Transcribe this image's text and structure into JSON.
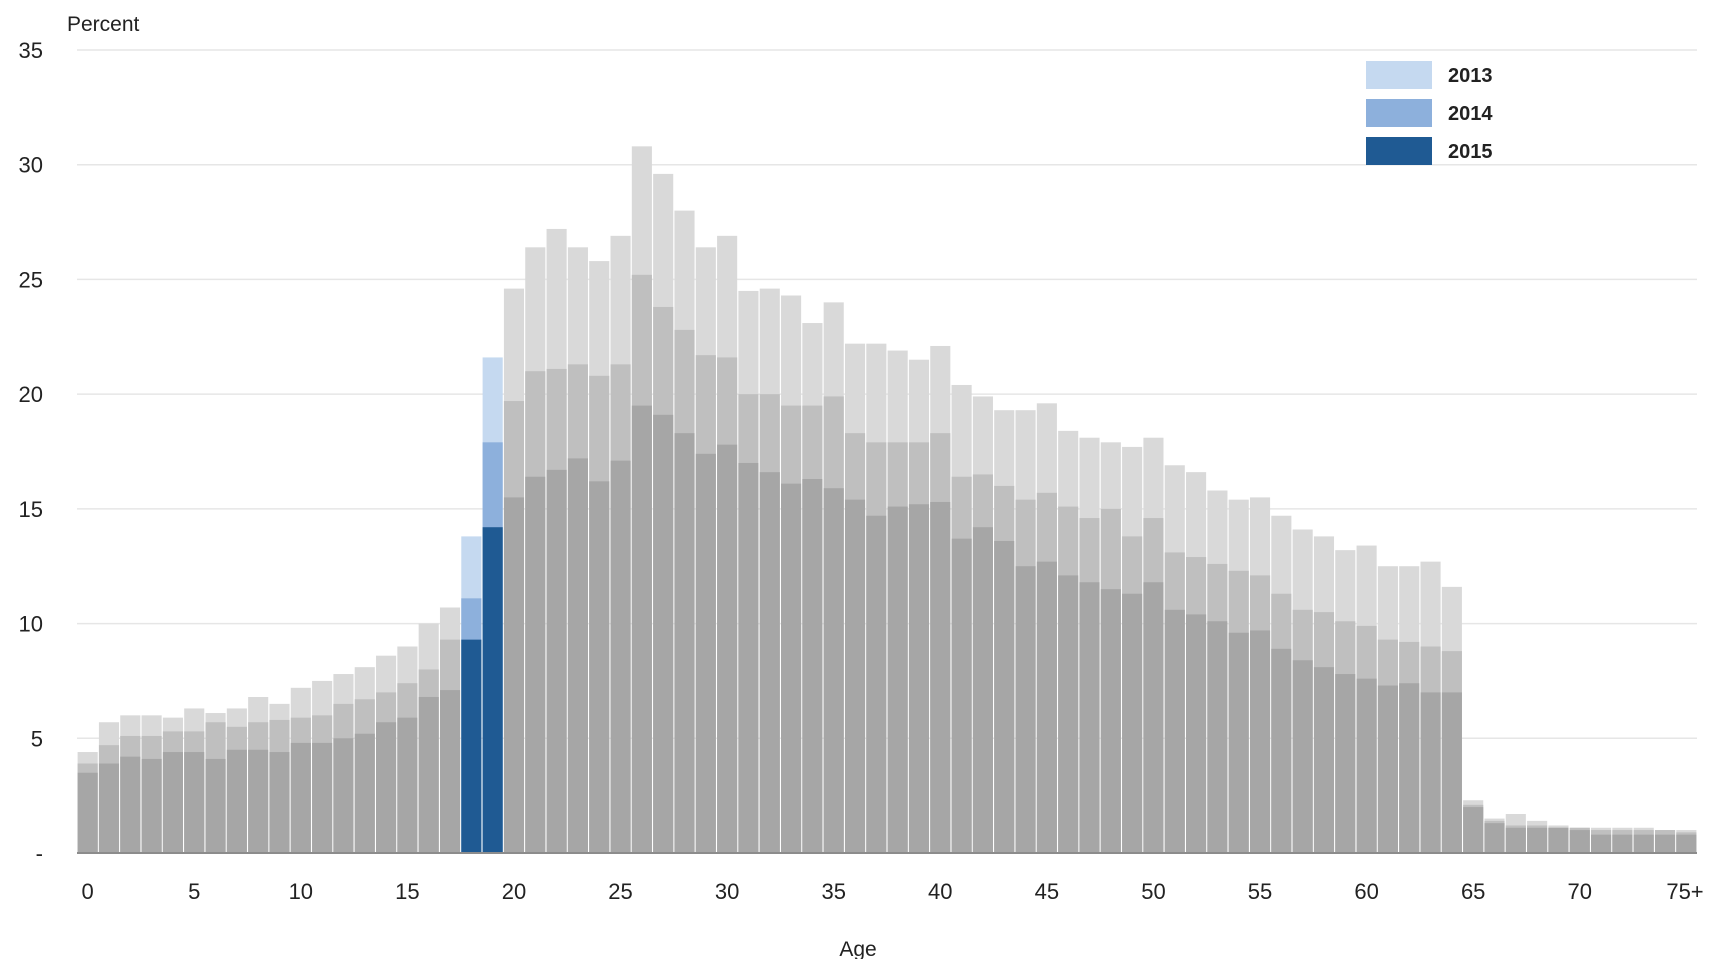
{
  "chart_data": {
    "type": "bar",
    "ylabel": "Percent",
    "xlabel": "Age",
    "ylim": [
      0,
      35
    ],
    "y_ticks": [
      "-",
      "5",
      "10",
      "15",
      "20",
      "25",
      "30",
      "35"
    ],
    "x_ticks": [
      {
        "age": 0,
        "label": "0"
      },
      {
        "age": 5,
        "label": "5"
      },
      {
        "age": 10,
        "label": "10"
      },
      {
        "age": 15,
        "label": "15"
      },
      {
        "age": 20,
        "label": "20"
      },
      {
        "age": 25,
        "label": "25"
      },
      {
        "age": 30,
        "label": "30"
      },
      {
        "age": 35,
        "label": "35"
      },
      {
        "age": 40,
        "label": "40"
      },
      {
        "age": 45,
        "label": "45"
      },
      {
        "age": 50,
        "label": "50"
      },
      {
        "age": 55,
        "label": "55"
      },
      {
        "age": 60,
        "label": "60"
      },
      {
        "age": 65,
        "label": "65"
      },
      {
        "age": 70,
        "label": "70"
      },
      {
        "age": 75,
        "label": "75+"
      }
    ],
    "grid": "horizontal",
    "legend_position": "top-right",
    "highlight_ages": [
      18,
      19
    ],
    "highlight_colors": [
      "#c5d9f0",
      "#8db0dc",
      "#1f5a93"
    ],
    "background_colors": [
      "#d9d9d9",
      "#bfbfbf",
      "#a6a6a6"
    ],
    "categories": [
      0,
      1,
      2,
      3,
      4,
      5,
      6,
      7,
      8,
      9,
      10,
      11,
      12,
      13,
      14,
      15,
      16,
      17,
      18,
      19,
      20,
      21,
      22,
      23,
      24,
      25,
      26,
      27,
      28,
      29,
      30,
      31,
      32,
      33,
      34,
      35,
      36,
      37,
      38,
      39,
      40,
      41,
      42,
      43,
      44,
      45,
      46,
      47,
      48,
      49,
      50,
      51,
      52,
      53,
      54,
      55,
      56,
      57,
      58,
      59,
      60,
      61,
      62,
      63,
      64,
      65,
      66,
      67,
      68,
      69,
      70,
      71,
      72,
      73,
      74,
      75
    ],
    "series": [
      {
        "name": "2013",
        "values": [
          4.4,
          5.7,
          6.0,
          6.0,
          5.9,
          6.3,
          6.1,
          6.3,
          6.8,
          6.5,
          7.2,
          7.5,
          7.8,
          8.1,
          8.6,
          9.0,
          10.0,
          10.7,
          13.8,
          21.6,
          24.6,
          26.4,
          27.2,
          26.4,
          25.8,
          26.9,
          30.8,
          29.6,
          28.0,
          26.4,
          26.9,
          24.5,
          24.6,
          24.3,
          23.1,
          24.0,
          22.2,
          22.2,
          21.9,
          21.5,
          22.1,
          20.4,
          19.9,
          19.3,
          19.3,
          19.6,
          18.4,
          18.1,
          17.9,
          17.7,
          18.1,
          16.9,
          16.6,
          15.8,
          15.4,
          15.5,
          14.7,
          14.1,
          13.8,
          13.2,
          13.4,
          12.5,
          12.5,
          12.7,
          11.6,
          2.3,
          1.5,
          1.7,
          1.4,
          1.2,
          1.1,
          1.1,
          1.1,
          1.1,
          1.0,
          1.0
        ]
      },
      {
        "name": "2014",
        "values": [
          3.9,
          4.7,
          5.1,
          5.1,
          5.3,
          5.3,
          5.7,
          5.5,
          5.7,
          5.8,
          5.9,
          6.0,
          6.5,
          6.7,
          7.0,
          7.4,
          8.0,
          9.3,
          11.1,
          17.9,
          19.7,
          21.0,
          21.1,
          21.3,
          20.8,
          21.3,
          25.2,
          23.8,
          22.8,
          21.7,
          21.6,
          20.0,
          20.0,
          19.5,
          19.5,
          19.9,
          18.3,
          17.9,
          17.9,
          17.9,
          18.3,
          16.4,
          16.5,
          16.0,
          15.4,
          15.7,
          15.1,
          14.6,
          15.0,
          13.8,
          14.6,
          13.1,
          12.9,
          12.6,
          12.3,
          12.1,
          11.3,
          10.6,
          10.5,
          10.1,
          9.9,
          9.3,
          9.2,
          9.0,
          8.8,
          2.1,
          1.4,
          1.2,
          1.2,
          1.1,
          1.1,
          1.0,
          1.0,
          1.0,
          1.0,
          0.9
        ]
      },
      {
        "name": "2015",
        "values": [
          3.5,
          3.9,
          4.2,
          4.1,
          4.4,
          4.4,
          4.1,
          4.5,
          4.5,
          4.4,
          4.8,
          4.8,
          5.0,
          5.2,
          5.7,
          5.9,
          6.8,
          7.1,
          9.3,
          14.2,
          15.5,
          16.4,
          16.7,
          17.2,
          16.2,
          17.1,
          19.5,
          19.1,
          18.3,
          17.4,
          17.8,
          17.0,
          16.6,
          16.1,
          16.3,
          15.9,
          15.4,
          14.7,
          15.1,
          15.2,
          15.3,
          13.7,
          14.2,
          13.6,
          12.5,
          12.7,
          12.1,
          11.8,
          11.5,
          11.3,
          11.8,
          10.6,
          10.4,
          10.1,
          9.6,
          9.7,
          8.9,
          8.4,
          8.1,
          7.8,
          7.6,
          7.3,
          7.4,
          7.0,
          7.0,
          2.0,
          1.3,
          1.1,
          1.1,
          1.1,
          1.0,
          0.8,
          0.8,
          0.8,
          0.8,
          0.8
        ]
      }
    ]
  }
}
